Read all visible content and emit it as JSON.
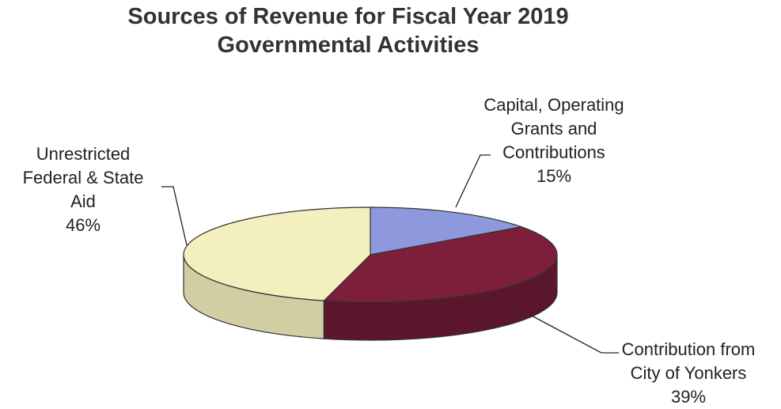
{
  "chart_data": {
    "type": "pie",
    "style": "3d",
    "title": "Sources of Revenue for Fiscal Year 2019",
    "subtitle": "Governmental Activities",
    "slices": [
      {
        "label_lines": [
          "Capital, Operating",
          "Grants and",
          "Contributions"
        ],
        "percent_label": "15%",
        "value": 15,
        "color": "#8e99dd"
      },
      {
        "label_lines": [
          "Contribution from",
          "City of Yonkers"
        ],
        "percent_label": "39%",
        "value": 39,
        "color": "#7d1e3a"
      },
      {
        "label_lines": [
          "Unrestricted",
          "Federal & State",
          "Aid"
        ],
        "percent_label": "46%",
        "value": 46,
        "color": "#f3efbe"
      }
    ],
    "legend": "none"
  }
}
